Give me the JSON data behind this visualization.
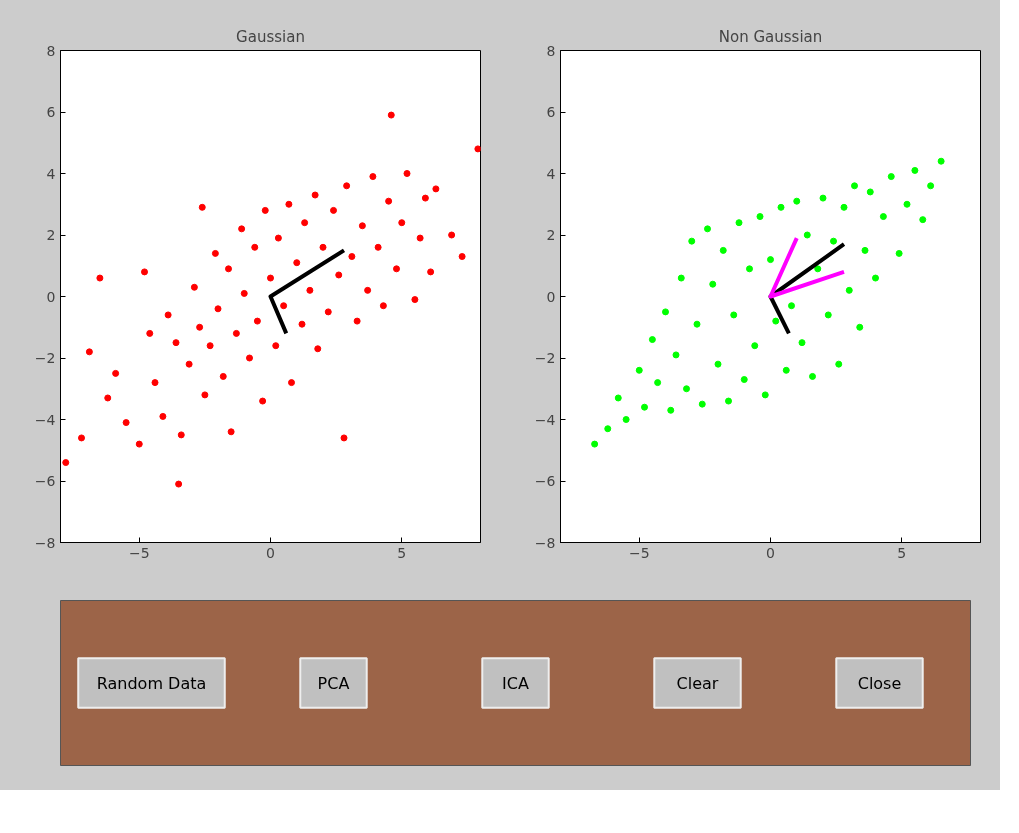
{
  "chart_data": [
    {
      "type": "scatter",
      "title": "Gaussian",
      "xlim": [
        -8,
        8
      ],
      "ylim": [
        -8,
        8
      ],
      "xticks": [
        -5,
        0,
        5
      ],
      "yticks": [
        -8,
        -6,
        -4,
        -2,
        0,
        2,
        4,
        6,
        8
      ],
      "grid": false,
      "marker": "circle",
      "series": [
        {
          "color": "#ff0000",
          "x": [
            -7.8,
            -7.2,
            -6.9,
            -6.5,
            -6.2,
            -5.9,
            -5.5,
            -5.0,
            -4.8,
            -4.6,
            -4.4,
            -4.1,
            -3.9,
            -3.6,
            -3.5,
            -3.4,
            -3.1,
            -2.9,
            -2.7,
            -2.6,
            -2.5,
            -2.3,
            -2.1,
            -2.0,
            -1.8,
            -1.6,
            -1.5,
            -1.3,
            -1.1,
            -1.0,
            -0.8,
            -0.6,
            -0.5,
            -0.3,
            -0.2,
            0.0,
            0.2,
            0.3,
            0.5,
            0.7,
            0.8,
            1.0,
            1.2,
            1.3,
            1.5,
            1.7,
            1.8,
            2.0,
            2.2,
            2.4,
            2.6,
            2.8,
            2.9,
            3.1,
            3.3,
            3.5,
            3.7,
            3.9,
            4.1,
            4.3,
            4.5,
            4.6,
            4.8,
            5.0,
            5.2,
            5.5,
            5.7,
            5.9,
            6.1,
            6.3,
            6.9,
            7.3,
            7.9
          ],
          "values": [
            -5.4,
            -4.6,
            -1.8,
            0.6,
            -3.3,
            -2.5,
            -4.1,
            -4.8,
            0.8,
            -1.2,
            -2.8,
            -3.9,
            -0.6,
            -1.5,
            -6.1,
            -4.5,
            -2.2,
            0.3,
            -1.0,
            2.9,
            -3.2,
            -1.6,
            1.4,
            -0.4,
            -2.6,
            0.9,
            -4.4,
            -1.2,
            2.2,
            0.1,
            -2.0,
            1.6,
            -0.8,
            -3.4,
            2.8,
            0.6,
            -1.6,
            1.9,
            -0.3,
            3.0,
            -2.8,
            1.1,
            -0.9,
            2.4,
            0.2,
            3.3,
            -1.7,
            1.6,
            -0.5,
            2.8,
            0.7,
            -4.6,
            3.6,
            1.3,
            -0.8,
            2.3,
            0.2,
            3.9,
            1.6,
            -0.3,
            3.1,
            5.9,
            0.9,
            2.4,
            4.0,
            -0.1,
            1.9,
            3.2,
            0.8,
            3.5,
            2.0,
            1.3,
            4.8
          ]
        },
        {
          "type": "line",
          "color": "#000000",
          "marker": "none",
          "line_style": "solid",
          "x": [
            2.8,
            0,
            0.6
          ],
          "values": [
            1.5,
            0,
            -1.2
          ]
        }
      ]
    },
    {
      "type": "scatter",
      "title": "Non Gaussian",
      "xlim": [
        -8,
        8
      ],
      "ylim": [
        -8,
        8
      ],
      "xticks": [
        -5,
        0,
        5
      ],
      "yticks": [
        -8,
        -6,
        -4,
        -2,
        0,
        2,
        4,
        6,
        8
      ],
      "grid": false,
      "marker": "circle",
      "series": [
        {
          "color": "#00ff00",
          "x": [
            -6.7,
            -6.2,
            -5.8,
            -5.5,
            -5.0,
            -4.8,
            -4.5,
            -4.3,
            -4.0,
            -3.8,
            -3.6,
            -3.4,
            -3.2,
            -3.0,
            -2.8,
            -2.6,
            -2.4,
            -2.2,
            -2.0,
            -1.8,
            -1.6,
            -1.4,
            -1.2,
            -1.0,
            -0.8,
            -0.6,
            -0.4,
            -0.2,
            0.0,
            0.2,
            0.4,
            0.6,
            0.8,
            1.0,
            1.2,
            1.4,
            1.6,
            1.8,
            2.0,
            2.2,
            2.4,
            2.6,
            2.8,
            3.0,
            3.2,
            3.4,
            3.6,
            3.8,
            4.0,
            4.3,
            4.6,
            4.9,
            5.2,
            5.5,
            5.8,
            6.1,
            6.5
          ],
          "values": [
            -4.8,
            -4.3,
            -3.3,
            -4.0,
            -2.4,
            -3.6,
            -1.4,
            -2.8,
            -0.5,
            -3.7,
            -1.9,
            0.6,
            -3.0,
            1.8,
            -0.9,
            -3.5,
            2.2,
            0.4,
            -2.2,
            1.5,
            -3.4,
            -0.6,
            2.4,
            -2.7,
            0.9,
            -1.6,
            2.6,
            -3.2,
            1.2,
            -0.8,
            2.9,
            -2.4,
            -0.3,
            3.1,
            -1.5,
            2.0,
            -2.6,
            0.9,
            3.2,
            -0.6,
            1.8,
            -2.2,
            2.9,
            0.2,
            3.6,
            -1.0,
            1.5,
            3.4,
            0.6,
            2.6,
            3.9,
            1.4,
            3.0,
            4.1,
            2.5,
            3.6,
            4.4
          ]
        },
        {
          "type": "line",
          "color": "#000000",
          "marker": "none",
          "line_style": "solid",
          "x": [
            2.8,
            0,
            0.7
          ],
          "values": [
            1.7,
            0,
            -1.2
          ]
        },
        {
          "type": "line",
          "color": "#ff00ff",
          "marker": "none",
          "line_style": "solid",
          "x": [
            1.0,
            0,
            2.8
          ],
          "values": [
            1.9,
            0,
            0.8
          ]
        }
      ]
    },
    {
      "type": "other",
      "annotations": [
        "Random Data",
        "PCA",
        "ICA",
        "Clear",
        "Close"
      ]
    }
  ]
}
